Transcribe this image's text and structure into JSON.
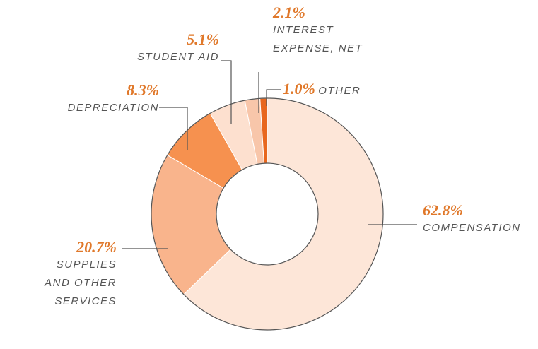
{
  "chart_data": {
    "type": "donut",
    "categories": [
      "COMPENSATION",
      "SUPPLIES AND OTHER SERVICES",
      "DEPRECIATION",
      "STUDENT AID",
      "INTEREST EXPENSE, NET",
      "OTHER"
    ],
    "values": [
      62.8,
      20.7,
      8.3,
      5.1,
      2.1,
      1.0
    ],
    "value_labels": [
      "62.8%",
      "20.7%",
      "8.3%",
      "5.1%",
      "2.1%",
      "1.0%"
    ],
    "colors": [
      "#fde6d8",
      "#f9b48c",
      "#f6914f",
      "#fde0cf",
      "#f8c6aa",
      "#e8671e"
    ]
  }
}
